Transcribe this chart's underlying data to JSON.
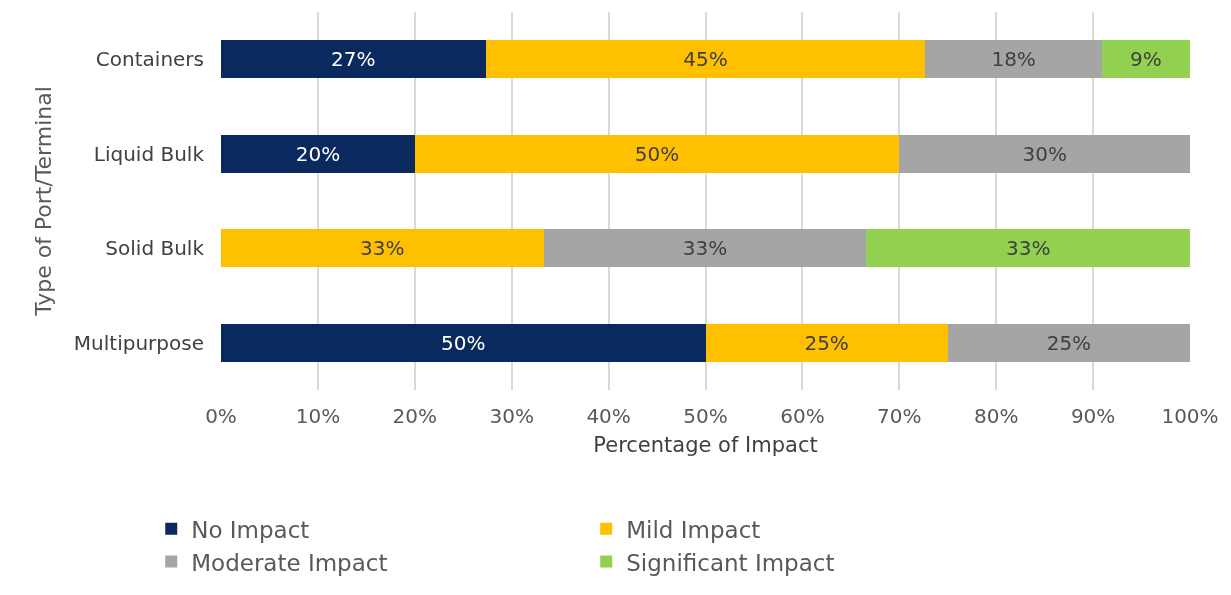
{
  "chart_data": {
    "type": "bar",
    "orientation": "horizontal",
    "stacked": true,
    "categories": [
      "Containers",
      "Liquid Bulk",
      "Solid Bulk",
      "Multipurpose"
    ],
    "xlabel": "Percentage of Impact",
    "ylabel": "Type of Port/Terminal",
    "series": [
      {
        "name": "No Impact",
        "color": "#0a2a5f",
        "values": [
          27.3,
          20,
          null,
          50
        ],
        "value_labels": [
          "27%",
          "20%",
          null,
          "50%"
        ]
      },
      {
        "name": "Mild Impact",
        "color": "#ffc000",
        "values": [
          45.4,
          50,
          33.3,
          25
        ],
        "value_labels": [
          "45%",
          "50%",
          "33%",
          "25%"
        ]
      },
      {
        "name": "Moderate Impact",
        "color": "#a5a5a5",
        "values": [
          18.2,
          30,
          33.3,
          25
        ],
        "value_labels": [
          "18%",
          "30%",
          "33%",
          "25%"
        ]
      },
      {
        "name": "Significant Impact",
        "color": "#92d050",
        "values": [
          9.1,
          null,
          33.4,
          null
        ],
        "value_labels": [
          "9%",
          null,
          "33%",
          null
        ]
      }
    ],
    "xlim": [
      0,
      100
    ],
    "xticks": [
      {
        "value": 0,
        "label": "0%"
      },
      {
        "value": 10,
        "label": "10%"
      },
      {
        "value": 20,
        "label": "20%"
      },
      {
        "value": 30,
        "label": "30%"
      },
      {
        "value": 40,
        "label": "40%"
      },
      {
        "value": 50,
        "label": "50%"
      },
      {
        "value": 60,
        "label": "60%"
      },
      {
        "value": 70,
        "label": "70%"
      },
      {
        "value": 80,
        "label": "80%"
      },
      {
        "value": 90,
        "label": "90%"
      },
      {
        "value": 100,
        "label": "100%"
      }
    ],
    "grid": "x",
    "legend": "bottom"
  }
}
